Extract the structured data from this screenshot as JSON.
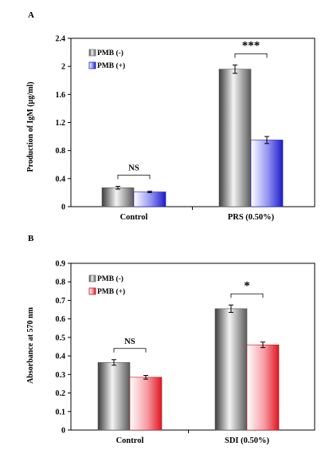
{
  "chart_data": [
    {
      "panel": "A",
      "type": "bar",
      "categories": [
        "Control",
        "PRS (0.50%)"
      ],
      "series": [
        {
          "name": "PMB (-)",
          "values": [
            0.27,
            1.96
          ],
          "errors": [
            0.02,
            0.06
          ]
        },
        {
          "name": "PMB (+)",
          "values": [
            0.21,
            0.95
          ],
          "errors": [
            0.01,
            0.05
          ]
        }
      ],
      "ylabel": "Production of IgM (µg/ml)",
      "xlabel": "",
      "ylim": [
        0,
        2.4
      ],
      "yticks": [
        "0",
        "0.4",
        "0.8",
        "1.2",
        "1.6",
        "2",
        "2.4"
      ],
      "legend_position": "top-left",
      "grid": false,
      "annotations": [
        {
          "category": "Control",
          "text": "NS"
        },
        {
          "category": "PRS (0.50%)",
          "text": "***"
        }
      ],
      "colors": {
        "series1": "#8c8c8c",
        "series2": "#2b2bd6",
        "significance": "#1a1aa8"
      }
    },
    {
      "panel": "B",
      "type": "bar",
      "categories": [
        "Control",
        "SDI (0.50%)"
      ],
      "series": [
        {
          "name": "PMB (-)",
          "values": [
            0.365,
            0.655
          ],
          "errors": [
            0.015,
            0.02
          ]
        },
        {
          "name": "PMB (+)",
          "values": [
            0.285,
            0.46
          ],
          "errors": [
            0.01,
            0.015
          ]
        }
      ],
      "ylabel": "Absorbance at 570 nm",
      "xlabel": "",
      "ylim": [
        0,
        0.9
      ],
      "yticks": [
        "0",
        "0.1",
        "0.2",
        "0.3",
        "0.4",
        "0.5",
        "0.6",
        "0.7",
        "0.8",
        "0.9"
      ],
      "legend_position": "top-left",
      "grid": false,
      "annotations": [
        {
          "category": "Control",
          "text": "NS"
        },
        {
          "category": "SDI (0.50%)",
          "text": "*"
        }
      ],
      "colors": {
        "series1": "#8c8c8c",
        "series2": "#e8202a",
        "significance": "#1a1aa8"
      }
    }
  ]
}
